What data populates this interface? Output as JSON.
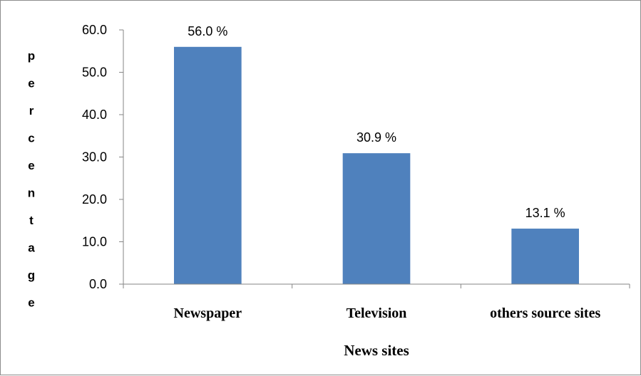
{
  "chart_data": {
    "type": "bar",
    "categories": [
      "Newspaper",
      "Television",
      "others source sites"
    ],
    "values": [
      56.0,
      30.9,
      13.1
    ],
    "data_labels": [
      "56.0 %",
      "30.9 %",
      "13.1 %"
    ],
    "title": "",
    "xlabel": "News sites",
    "ylabel": "percentage",
    "ylim": [
      0,
      60
    ],
    "yticks": [
      "0.0",
      "10.0",
      "20.0",
      "30.0",
      "40.0",
      "50.0",
      "60.0"
    ],
    "grid": false,
    "legend": "none",
    "bar_color": "#4f81bd"
  }
}
